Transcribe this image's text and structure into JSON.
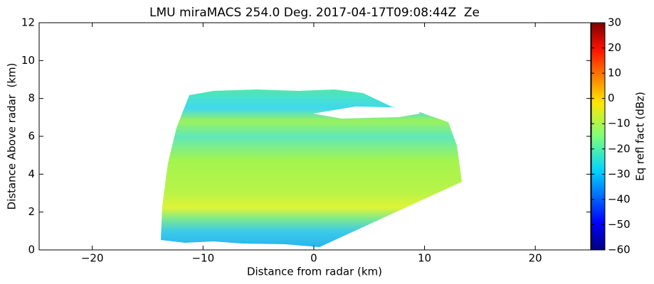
{
  "chart_data": {
    "type": "heatmap",
    "title": "LMU miraMACS 254.0 Deg. 2017-04-17T09:08:44Z  Ze",
    "xlabel": "Distance from radar (km)",
    "ylabel": "Distance Above radar  (km)",
    "xlim": [
      -24.8,
      25
    ],
    "ylim": [
      0,
      12
    ],
    "xticks": [
      {
        "value": -20,
        "label": "−20"
      },
      {
        "value": -10,
        "label": "−10"
      },
      0,
      10,
      20
    ],
    "yticks": [
      0,
      2,
      4,
      6,
      8,
      10,
      12
    ],
    "colorbar": {
      "label": "Eq refl fact (dBz)",
      "lim": [
        -60,
        30
      ],
      "ticks": [
        {
          "value": -60,
          "label": "−60"
        },
        {
          "value": -50,
          "label": "−50"
        },
        {
          "value": -40,
          "label": "−40"
        },
        {
          "value": -30,
          "label": "−30"
        },
        {
          "value": -20,
          "label": "−20"
        },
        {
          "value": -10,
          "label": "−10"
        },
        0,
        10,
        20,
        30
      ]
    }
  }
}
